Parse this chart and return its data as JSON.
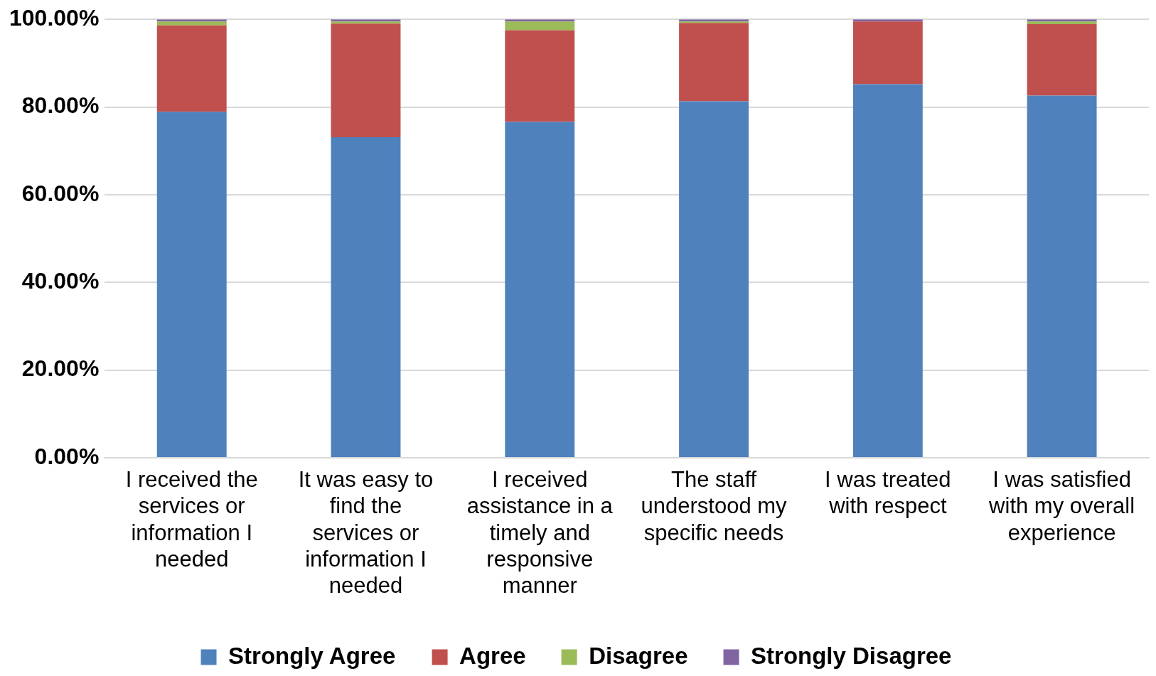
{
  "chart_data": {
    "type": "bar",
    "stacked": true,
    "categories": [
      "I received the services or information I needed",
      "It was easy to find the services or information I needed",
      "I received assistance in a timely and responsive manner",
      "The staff understood my specific needs",
      "I was treated with respect",
      "I was satisfied with my overall experience"
    ],
    "series": [
      {
        "name": "Strongly Agree",
        "color": "#4f81bd",
        "values": [
          78.9,
          73.1,
          76.6,
          81.3,
          85.2,
          82.6
        ]
      },
      {
        "name": "Agree",
        "color": "#c0504d",
        "values": [
          19.7,
          25.9,
          20.9,
          17.9,
          14.3,
          16.3
        ]
      },
      {
        "name": "Disagree",
        "color": "#9bbb59",
        "values": [
          0.9,
          0.5,
          2.0,
          0.3,
          0,
          0.6
        ]
      },
      {
        "name": "Strongly Disagree",
        "color": "#8064a2",
        "values": [
          0.5,
          0.5,
          0.5,
          0.5,
          0.5,
          0.5
        ]
      }
    ],
    "ylim": [
      0,
      100
    ],
    "yticks": [
      {
        "value": 0,
        "label": "0.00%"
      },
      {
        "value": 20,
        "label": "20.00%"
      },
      {
        "value": 40,
        "label": "40.00%"
      },
      {
        "value": 60,
        "label": "60.00%"
      },
      {
        "value": 80,
        "label": "80.00%"
      },
      {
        "value": 100,
        "label": "100.00%"
      }
    ],
    "grid": "y",
    "legend": "bottom"
  }
}
